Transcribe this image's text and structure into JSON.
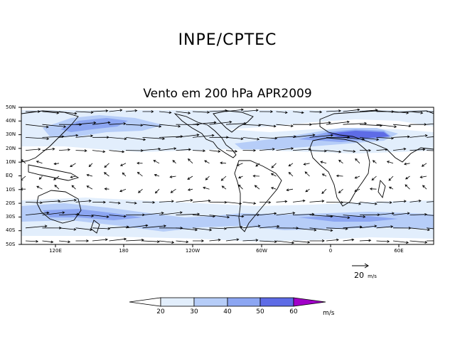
{
  "header": {
    "title": "INPE/CPTEC",
    "subtitle": "Vento em 200 hPa APR2009"
  },
  "map": {
    "lat_labels": [
      "50N",
      "40N",
      "30N",
      "20N",
      "10N",
      "EQ",
      "10S",
      "20S",
      "30S",
      "40S",
      "50S"
    ],
    "lon_labels": [
      "120E",
      "180",
      "120W",
      "60W",
      "0",
      "60E"
    ],
    "land_color": "#000000",
    "ocean_color": "#ffffff"
  },
  "reference_vector": {
    "value": "20",
    "unit": "m/s"
  },
  "colorbar": {
    "levels": [
      "20",
      "30",
      "40",
      "50",
      "60"
    ],
    "unit": "m/s",
    "colors": [
      "#ffffff",
      "#e2eefc",
      "#b6cdf8",
      "#8ca6f2",
      "#5e6ce6",
      "#a100c8"
    ]
  }
}
